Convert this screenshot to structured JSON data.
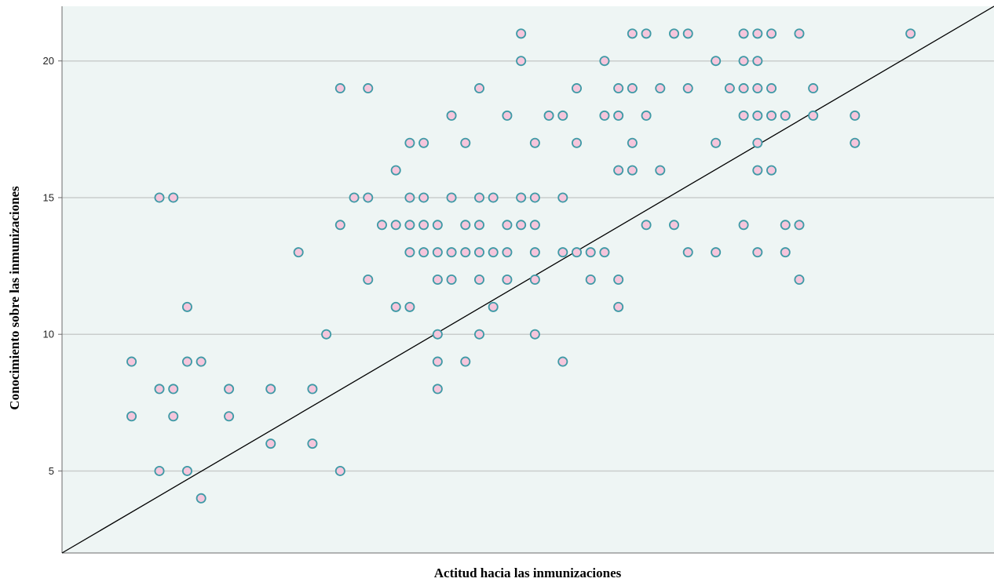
{
  "chart_data": {
    "type": "scatter",
    "title": "",
    "xlabel": "Actitud hacia las inmunizaciones",
    "ylabel": "Conocimiento sobre las inmunizaciones",
    "x_tick_labels": [],
    "ylim": [
      2,
      22
    ],
    "xlim": [
      1,
      68
    ],
    "y_ticks": [
      5,
      10,
      15,
      20
    ],
    "grid": "horizontal",
    "legend": "none",
    "fit_line": {
      "x0": 1,
      "y0": 2,
      "x1": 68,
      "y1": 22
    },
    "colors": {
      "plot_background": "#eef5f4",
      "marker_fill": "#f5c6dc",
      "marker_edge": "#3f9aa6",
      "gridline": "#c9cdcc",
      "fit_line": "#000000"
    },
    "points": [
      [
        6,
        9
      ],
      [
        6,
        7
      ],
      [
        8,
        15
      ],
      [
        8,
        8
      ],
      [
        8,
        5
      ],
      [
        9,
        15
      ],
      [
        9,
        8
      ],
      [
        9,
        7
      ],
      [
        10,
        11
      ],
      [
        10,
        9
      ],
      [
        10,
        5
      ],
      [
        11,
        9
      ],
      [
        11,
        4
      ],
      [
        13,
        8
      ],
      [
        13,
        7
      ],
      [
        16,
        8
      ],
      [
        16,
        6
      ],
      [
        18,
        13
      ],
      [
        19,
        8
      ],
      [
        19,
        6
      ],
      [
        20,
        10
      ],
      [
        21,
        19
      ],
      [
        21,
        14
      ],
      [
        21,
        5
      ],
      [
        22,
        15
      ],
      [
        23,
        19
      ],
      [
        23,
        15
      ],
      [
        23,
        12
      ],
      [
        24,
        14
      ],
      [
        25,
        16
      ],
      [
        25,
        14
      ],
      [
        25,
        11
      ],
      [
        26,
        17
      ],
      [
        26,
        15
      ],
      [
        26,
        14
      ],
      [
        26,
        13
      ],
      [
        26,
        11
      ],
      [
        27,
        17
      ],
      [
        27,
        15
      ],
      [
        27,
        14
      ],
      [
        27,
        13
      ],
      [
        28,
        14
      ],
      [
        28,
        13
      ],
      [
        28,
        12
      ],
      [
        28,
        10
      ],
      [
        28,
        9
      ],
      [
        28,
        8
      ],
      [
        29,
        18
      ],
      [
        29,
        15
      ],
      [
        29,
        13
      ],
      [
        29,
        12
      ],
      [
        30,
        17
      ],
      [
        30,
        14
      ],
      [
        30,
        13
      ],
      [
        30,
        9
      ],
      [
        31,
        19
      ],
      [
        31,
        15
      ],
      [
        31,
        14
      ],
      [
        31,
        13
      ],
      [
        31,
        12
      ],
      [
        31,
        10
      ],
      [
        32,
        15
      ],
      [
        32,
        13
      ],
      [
        32,
        11
      ],
      [
        33,
        18
      ],
      [
        33,
        14
      ],
      [
        33,
        13
      ],
      [
        33,
        12
      ],
      [
        34,
        21
      ],
      [
        34,
        20
      ],
      [
        34,
        15
      ],
      [
        34,
        14
      ],
      [
        35,
        17
      ],
      [
        35,
        15
      ],
      [
        35,
        14
      ],
      [
        35,
        13
      ],
      [
        35,
        12
      ],
      [
        35,
        10
      ],
      [
        36,
        18
      ],
      [
        37,
        18
      ],
      [
        37,
        15
      ],
      [
        37,
        13
      ],
      [
        37,
        9
      ],
      [
        38,
        19
      ],
      [
        38,
        17
      ],
      [
        38,
        13
      ],
      [
        39,
        13
      ],
      [
        39,
        12
      ],
      [
        40,
        20
      ],
      [
        40,
        18
      ],
      [
        40,
        13
      ],
      [
        41,
        19
      ],
      [
        41,
        18
      ],
      [
        41,
        16
      ],
      [
        41,
        12
      ],
      [
        41,
        11
      ],
      [
        42,
        21
      ],
      [
        42,
        19
      ],
      [
        42,
        17
      ],
      [
        42,
        16
      ],
      [
        43,
        21
      ],
      [
        43,
        18
      ],
      [
        43,
        14
      ],
      [
        44,
        19
      ],
      [
        44,
        16
      ],
      [
        45,
        21
      ],
      [
        45,
        14
      ],
      [
        46,
        21
      ],
      [
        46,
        19
      ],
      [
        46,
        13
      ],
      [
        48,
        20
      ],
      [
        48,
        17
      ],
      [
        48,
        13
      ],
      [
        49,
        19
      ],
      [
        50,
        21
      ],
      [
        50,
        20
      ],
      [
        50,
        19
      ],
      [
        50,
        18
      ],
      [
        50,
        14
      ],
      [
        51,
        21
      ],
      [
        51,
        20
      ],
      [
        51,
        19
      ],
      [
        51,
        18
      ],
      [
        51,
        17
      ],
      [
        51,
        16
      ],
      [
        51,
        13
      ],
      [
        52,
        21
      ],
      [
        52,
        19
      ],
      [
        52,
        18
      ],
      [
        52,
        16
      ],
      [
        53,
        18
      ],
      [
        53,
        14
      ],
      [
        53,
        13
      ],
      [
        54,
        21
      ],
      [
        54,
        14
      ],
      [
        54,
        12
      ],
      [
        55,
        19
      ],
      [
        55,
        18
      ],
      [
        58,
        18
      ],
      [
        58,
        17
      ],
      [
        62,
        21
      ]
    ]
  }
}
